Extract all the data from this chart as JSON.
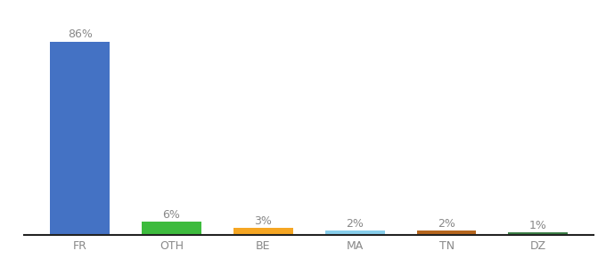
{
  "categories": [
    "FR",
    "OTH",
    "BE",
    "MA",
    "TN",
    "DZ"
  ],
  "values": [
    86,
    6,
    3,
    2,
    2,
    1
  ],
  "labels": [
    "86%",
    "6%",
    "3%",
    "2%",
    "2%",
    "1%"
  ],
  "bar_colors": [
    "#4472C4",
    "#3DBB3D",
    "#F5A623",
    "#87CEEB",
    "#B5651D",
    "#3A7D44"
  ],
  "ylim": [
    0,
    95
  ],
  "background_color": "#ffffff",
  "label_fontsize": 9,
  "tick_fontsize": 9,
  "label_color": "#888888",
  "tick_color": "#888888",
  "bottom_spine_color": "#222222"
}
